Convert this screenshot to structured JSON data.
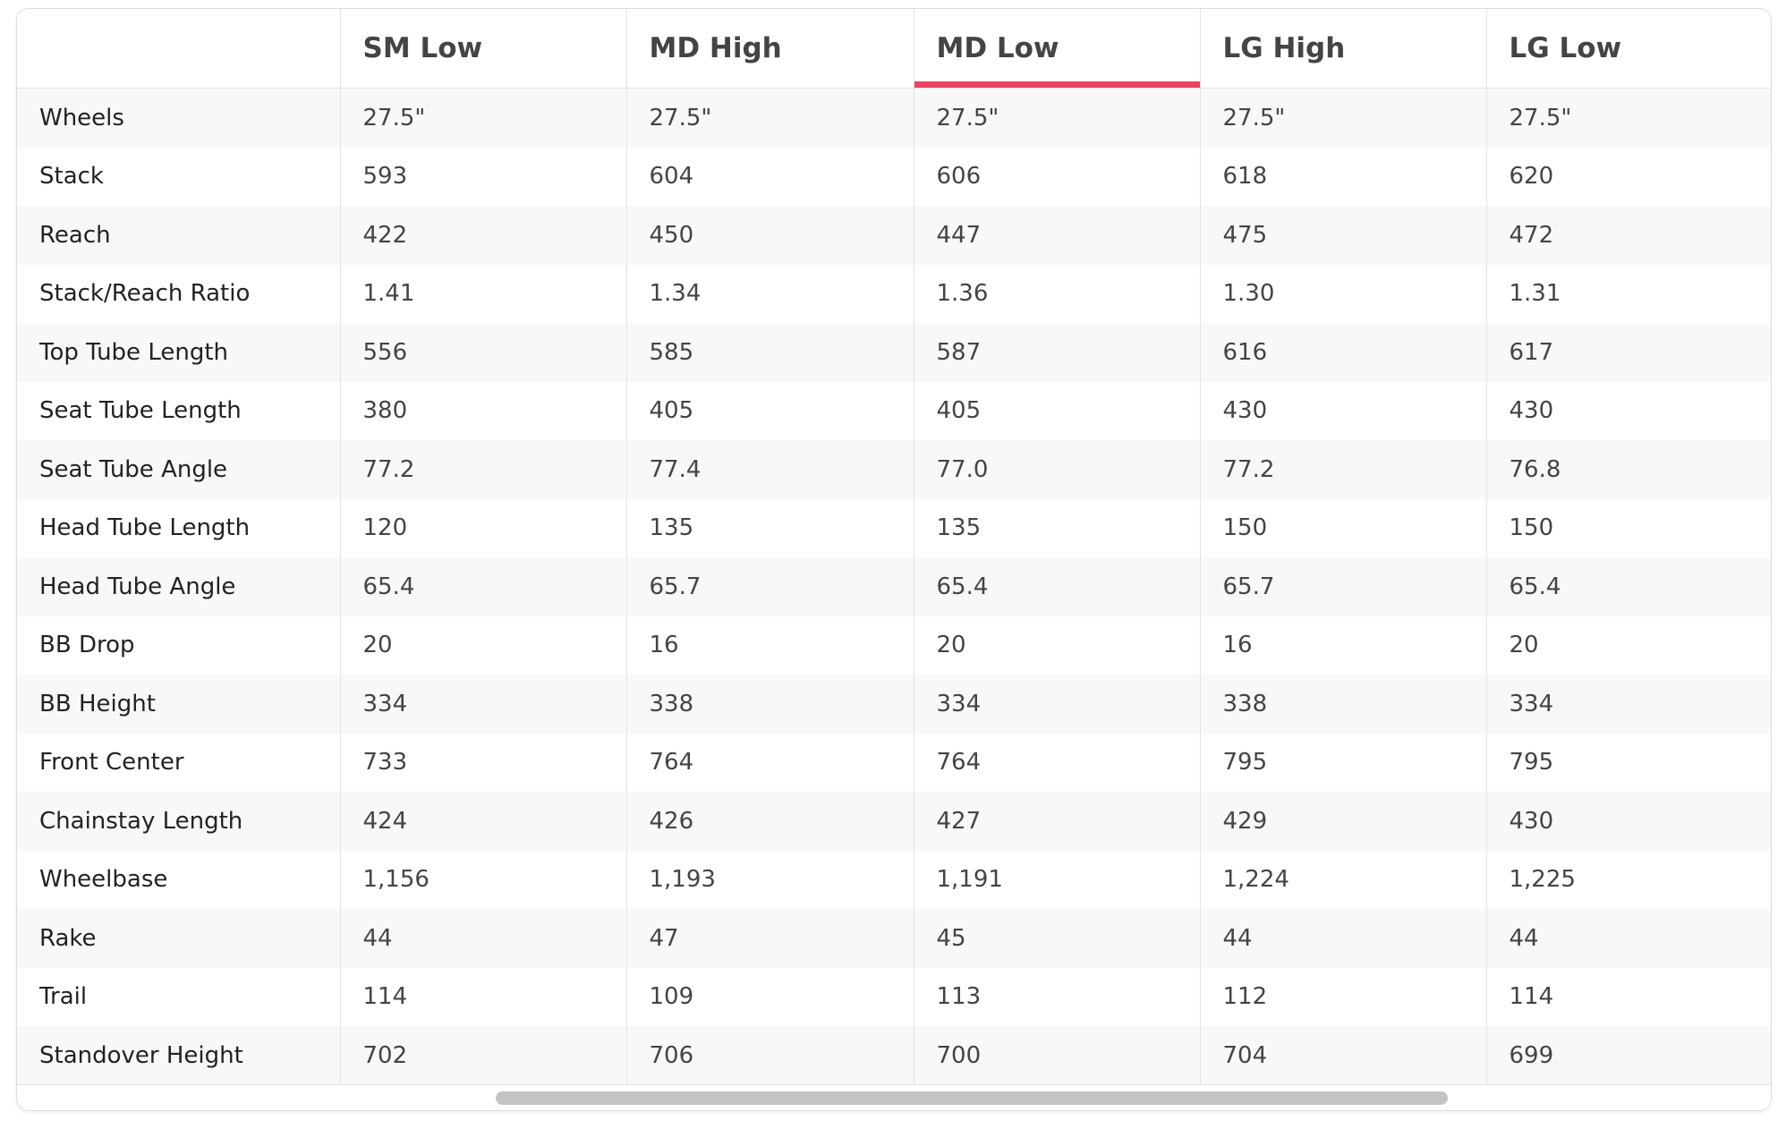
{
  "table": {
    "headers": [
      "SM Low",
      "MD High",
      "MD Low",
      "LG High",
      "LG Low"
    ],
    "rows": [
      [
        "Wheels",
        "27.5\"",
        "27.5\"",
        "27.5\"",
        "27.5\"",
        "27.5\""
      ],
      [
        "Stack",
        "593",
        "604",
        "606",
        "618",
        "620"
      ],
      [
        "Reach",
        "422",
        "450",
        "447",
        "475",
        "472"
      ],
      [
        "Stack/Reach Ratio",
        "1.41",
        "1.34",
        "1.36",
        "1.30",
        "1.31"
      ],
      [
        "Top Tube Length",
        "556",
        "585",
        "587",
        "616",
        "617"
      ],
      [
        "Seat Tube Length",
        "380",
        "405",
        "405",
        "430",
        "430"
      ],
      [
        "Seat Tube Angle",
        "77.2",
        "77.4",
        "77.0",
        "77.2",
        "76.8"
      ],
      [
        "Head Tube Length",
        "120",
        "135",
        "135",
        "150",
        "150"
      ],
      [
        "Head Tube Angle",
        "65.4",
        "65.7",
        "65.4",
        "65.7",
        "65.4"
      ],
      [
        "BB Drop",
        "20",
        "16",
        "20",
        "16",
        "20"
      ],
      [
        "BB Height",
        "334",
        "338",
        "334",
        "338",
        "334"
      ],
      [
        "Front Center",
        "733",
        "764",
        "764",
        "795",
        "795"
      ],
      [
        "Chainstay Length",
        "424",
        "426",
        "427",
        "429",
        "430"
      ],
      [
        "Wheelbase",
        "1,156",
        "1,193",
        "1,191",
        "1,224",
        "1,225"
      ],
      [
        "Rake",
        "44",
        "47",
        "45",
        "44",
        "44"
      ],
      [
        "Trail",
        "114",
        "109",
        "113",
        "112",
        "114"
      ],
      [
        "Standover Height",
        "702",
        "706",
        "700",
        "704",
        "699"
      ]
    ]
  }
}
